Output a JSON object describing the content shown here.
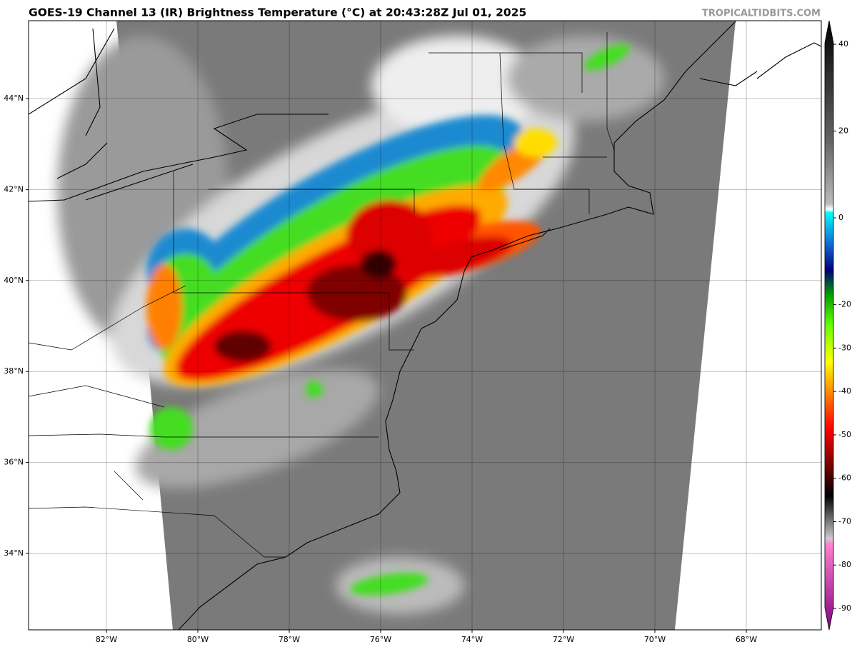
{
  "header": {
    "title": "GOES-19 Channel 13 (IR) Brightness Temperature (°C) at 20:43:28Z Jul 01, 2025",
    "watermark": "TROPICALTIDBITS.COM"
  },
  "map": {
    "latitudes": [
      {
        "value": 44,
        "label": "44°N"
      },
      {
        "value": 42,
        "label": "42°N"
      },
      {
        "value": 40,
        "label": "40°N"
      },
      {
        "value": 38,
        "label": "38°N"
      },
      {
        "value": 36,
        "label": "36°N"
      },
      {
        "value": 34,
        "label": "34°N"
      }
    ],
    "longitudes": [
      {
        "value": -82,
        "label": "82°W"
      },
      {
        "value": -80,
        "label": "80°W"
      },
      {
        "value": -78,
        "label": "78°W"
      },
      {
        "value": -76,
        "label": "76°W"
      },
      {
        "value": -74,
        "label": "74°W"
      },
      {
        "value": -72,
        "label": "72°W"
      },
      {
        "value": -70,
        "label": "70°W"
      },
      {
        "value": -68,
        "label": "68°W"
      }
    ]
  },
  "colorbar": {
    "ticks": [
      40,
      20,
      0,
      -20,
      -30,
      -40,
      -50,
      -60,
      -70,
      -80,
      -90
    ]
  }
}
